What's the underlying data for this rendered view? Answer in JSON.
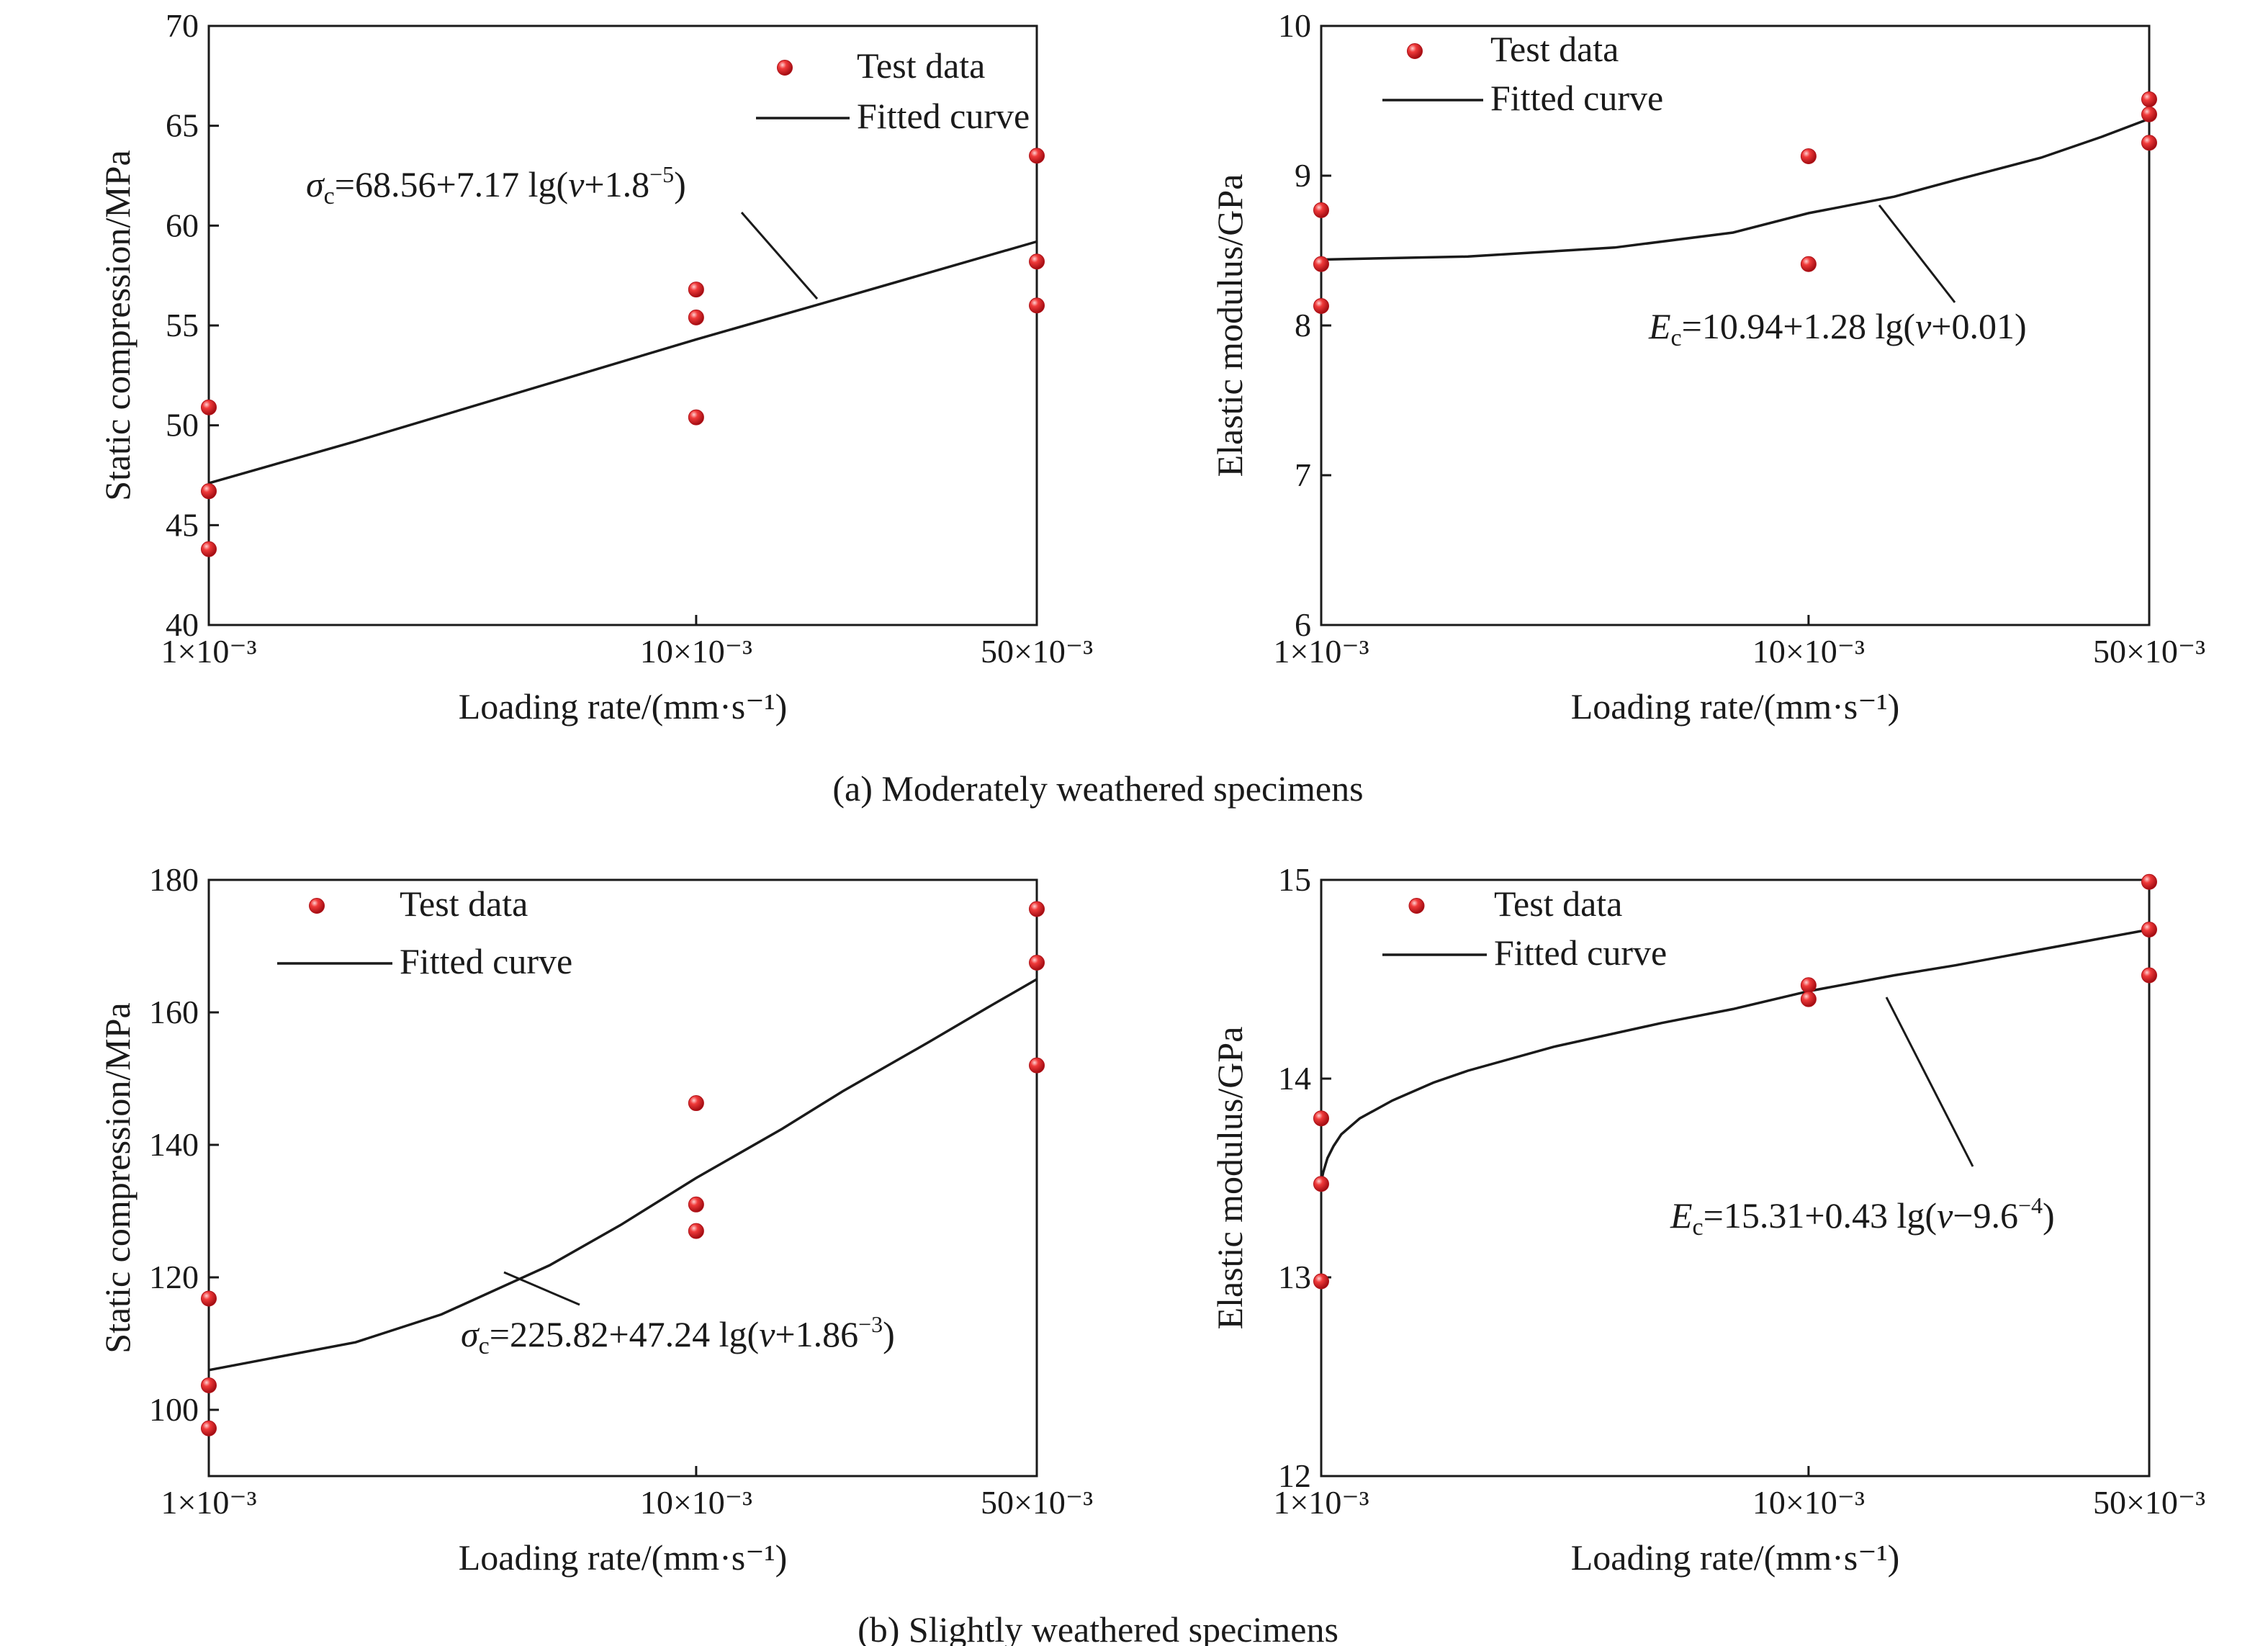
{
  "colors": {
    "marker": "#e8202a",
    "marker_highlight": "#ff9a9a",
    "line": "#1a1a1a"
  },
  "captions": [
    "(a) Moderately weathered specimens",
    "(b) Slightly weathered specimens"
  ],
  "chart_data": [
    {
      "type": "scatter",
      "xlabel": "Loading rate/(mm·s⁻¹)",
      "ylabel": "Static compression/MPa",
      "xscale": "log",
      "xlim": [
        0.001,
        0.05
      ],
      "ylim": [
        40,
        70
      ],
      "xticks": [
        0.001,
        0.01,
        0.05
      ],
      "xtick_labels": [
        "1×10⁻³",
        "10×10⁻³",
        "50×10⁻³"
      ],
      "yticks": [
        40,
        45,
        50,
        55,
        60,
        65,
        70
      ],
      "legend": {
        "position": "top-right",
        "entries": [
          "Test data",
          "Fitted curve"
        ]
      },
      "series": [
        {
          "name": "Test data",
          "kind": "points",
          "x": [
            0.001,
            0.001,
            0.001,
            0.01,
            0.01,
            0.01,
            0.05,
            0.05,
            0.05
          ],
          "y": [
            50.9,
            46.7,
            43.8,
            56.8,
            55.4,
            50.4,
            63.5,
            58.2,
            56.0
          ]
        },
        {
          "name": "Fitted curve",
          "kind": "line",
          "x": [
            0.001,
            0.002,
            0.005,
            0.01,
            0.02,
            0.05
          ],
          "y": [
            47.1,
            49.2,
            52.1,
            54.3,
            56.4,
            59.2
          ]
        }
      ],
      "annotation": {
        "symbol": "σ",
        "sub": "c",
        "formula": "=68.56+7.17 lg(",
        "var": "v",
        "tail": "+1.8",
        "sup": "−5",
        "close": ")"
      }
    },
    {
      "type": "scatter",
      "xlabel": "Loading rate/(mm·s⁻¹)",
      "ylabel": "Elastic modulus/GPa",
      "xscale": "log",
      "xlim": [
        0.001,
        0.05
      ],
      "ylim": [
        6,
        10
      ],
      "xticks": [
        0.001,
        0.01,
        0.05
      ],
      "xtick_labels": [
        "1×10⁻³",
        "10×10⁻³",
        "50×10⁻³"
      ],
      "yticks": [
        6,
        7,
        8,
        9,
        10
      ],
      "legend": {
        "position": "top-left",
        "entries": [
          "Test data",
          "Fitted curve"
        ]
      },
      "series": [
        {
          "name": "Test data",
          "kind": "points",
          "x": [
            0.001,
            0.001,
            0.001,
            0.01,
            0.01,
            0.05,
            0.05,
            0.05
          ],
          "y": [
            8.77,
            8.41,
            8.13,
            9.13,
            8.41,
            9.51,
            9.41,
            9.22
          ]
        },
        {
          "name": "Fitted curve",
          "kind": "line",
          "x": [
            0.001,
            0.002,
            0.004,
            0.007,
            0.01,
            0.015,
            0.02,
            0.03,
            0.04,
            0.05
          ],
          "y": [
            8.44,
            8.46,
            8.52,
            8.62,
            8.75,
            8.86,
            8.97,
            9.12,
            9.26,
            9.38
          ]
        }
      ],
      "annotation": {
        "symbol": "E",
        "sub": "c",
        "formula": "=10.94+1.28 lg(",
        "var": "v",
        "tail": "+0.01",
        "sup": "",
        "close": ")"
      }
    },
    {
      "type": "scatter",
      "xlabel": "Loading rate/(mm·s⁻¹)",
      "ylabel": "Static compression/MPa",
      "xscale": "log",
      "xlim": [
        0.001,
        0.05
      ],
      "ylim": [
        90,
        180
      ],
      "xticks": [
        0.001,
        0.01,
        0.05
      ],
      "xtick_labels": [
        "1×10⁻³",
        "10×10⁻³",
        "50×10⁻³"
      ],
      "yticks": [
        100,
        120,
        140,
        160,
        180
      ],
      "legend": {
        "position": "top-left",
        "entries": [
          "Test data",
          "Fitted curve"
        ]
      },
      "series": [
        {
          "name": "Test data",
          "kind": "points",
          "x": [
            0.001,
            0.001,
            0.001,
            0.01,
            0.01,
            0.01,
            0.05,
            0.05,
            0.05
          ],
          "y": [
            116.8,
            103.7,
            97.2,
            146.3,
            131.0,
            127.0,
            175.6,
            167.5,
            152.0
          ]
        },
        {
          "name": "Fitted curve",
          "kind": "line",
          "x": [
            0.001,
            0.002,
            0.003,
            0.005,
            0.007,
            0.01,
            0.015,
            0.02,
            0.03,
            0.04,
            0.05
          ],
          "y": [
            106.0,
            110.2,
            114.4,
            121.8,
            127.9,
            135.0,
            142.4,
            148.1,
            155.5,
            160.9,
            165.0
          ]
        }
      ],
      "annotation": {
        "symbol": "σ",
        "sub": "c",
        "formula": "=225.82+47.24 lg(",
        "var": "v",
        "tail": "+1.86",
        "sup": "−3",
        "close": ")"
      }
    },
    {
      "type": "scatter",
      "xlabel": "Loading rate/(mm·s⁻¹)",
      "ylabel": "Elastic modulus/GPa",
      "xscale": "log",
      "xlim": [
        0.001,
        0.05
      ],
      "ylim": [
        12,
        15
      ],
      "xticks": [
        0.001,
        0.01,
        0.05
      ],
      "xtick_labels": [
        "1×10⁻³",
        "10×10⁻³",
        "50×10⁻³"
      ],
      "yticks": [
        12,
        13,
        14,
        15
      ],
      "legend": {
        "position": "top-left",
        "entries": [
          "Test data",
          "Fitted curve"
        ]
      },
      "series": [
        {
          "name": "Test data",
          "kind": "points",
          "x": [
            0.001,
            0.001,
            0.001,
            0.01,
            0.01,
            0.05,
            0.05,
            0.05
          ],
          "y": [
            13.8,
            13.47,
            12.98,
            14.47,
            14.4,
            14.99,
            14.75,
            14.52
          ]
        },
        {
          "name": "Fitted curve",
          "kind": "line",
          "x": [
            0.001,
            0.00101,
            0.00103,
            0.00106,
            0.0011,
            0.0012,
            0.0014,
            0.0017,
            0.002,
            0.003,
            0.005,
            0.007,
            0.01,
            0.015,
            0.02,
            0.03,
            0.05
          ],
          "y": [
            13.48,
            13.53,
            13.6,
            13.66,
            13.72,
            13.8,
            13.89,
            13.98,
            14.04,
            14.16,
            14.28,
            14.35,
            14.44,
            14.52,
            14.57,
            14.65,
            14.75
          ]
        }
      ],
      "annotation": {
        "symbol": "E",
        "sub": "c",
        "formula": "=15.31+0.43 lg(",
        "var": "v",
        "tail": "−9.6",
        "sup": "−4",
        "close": ")"
      }
    }
  ]
}
